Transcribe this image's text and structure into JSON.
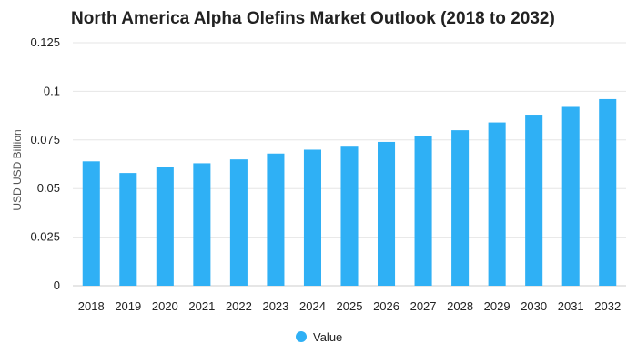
{
  "chart_data": {
    "type": "bar",
    "title": "North America Alpha Olefins Market Outlook (2018 to 2032)",
    "xlabel": "",
    "ylabel": "USD USD Billion",
    "categories": [
      "2018",
      "2019",
      "2020",
      "2021",
      "2022",
      "2023",
      "2024",
      "2025",
      "2026",
      "2027",
      "2028",
      "2029",
      "2030",
      "2031",
      "2032"
    ],
    "series": [
      {
        "name": "Value",
        "color": "#2fb0f5",
        "values": [
          0.064,
          0.058,
          0.061,
          0.063,
          0.065,
          0.068,
          0.07,
          0.072,
          0.074,
          0.077,
          0.08,
          0.084,
          0.088,
          0.092,
          0.096
        ]
      }
    ],
    "ylim": [
      0,
      0.125
    ],
    "yticks": [
      0,
      0.025,
      0.05,
      0.075,
      0.1,
      0.125
    ],
    "ytick_labels": [
      "0",
      "0.025",
      "0.05",
      "0.075",
      "0.1",
      "0.125"
    ],
    "grid": true,
    "legend": "bottom-center"
  }
}
